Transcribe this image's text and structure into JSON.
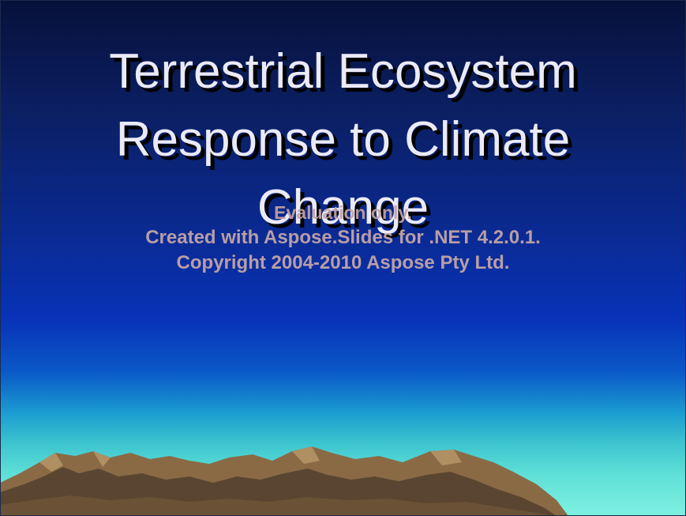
{
  "slide": {
    "title": "Terrestrial Ecosystem\nResponse to Climate\nChange",
    "watermark": {
      "line1": "Evaluation only.",
      "line2": "Created with Aspose.Slides for .NET 4.2.0.1.",
      "line3": "Copyright 2004-2010 Aspose Pty Ltd."
    },
    "colors": {
      "background_top": "#07113a",
      "background_mid": "#0833b8",
      "horizon": "#7ff0e1",
      "title_text": "#eaeaf8",
      "watermark_text": "#c8a8a8",
      "mountain_light": "#9a7a55",
      "mountain_dark": "#4a3a26"
    }
  }
}
